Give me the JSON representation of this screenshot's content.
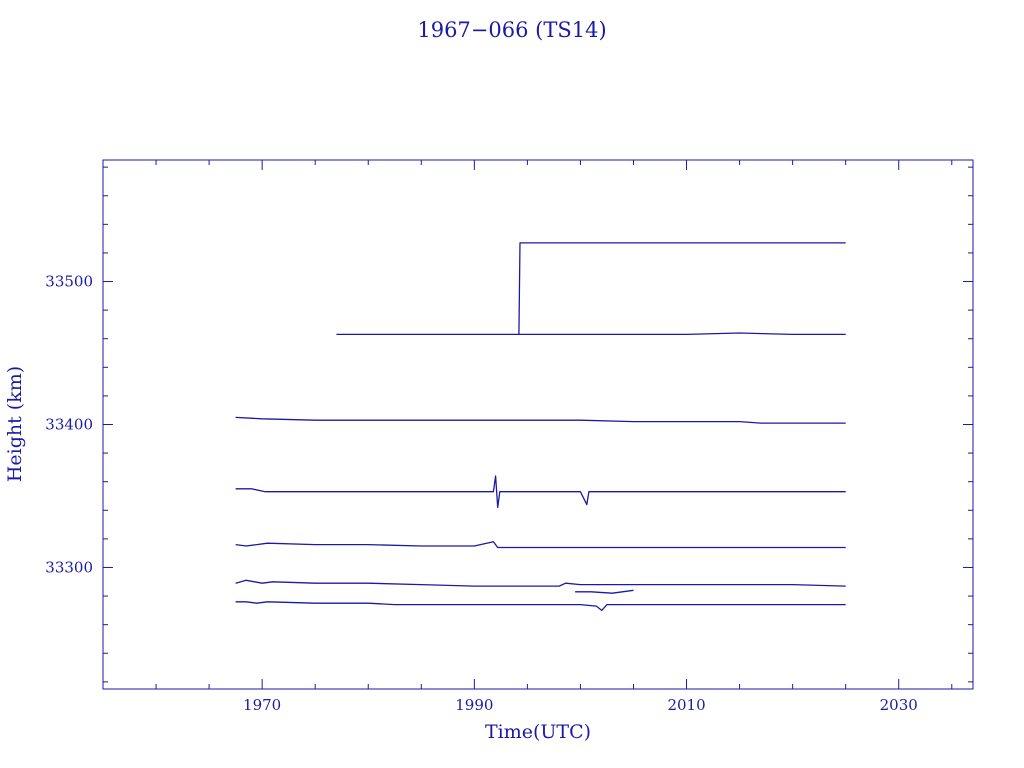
{
  "chart_data": {
    "type": "line",
    "title": "1967−066 (TS14)",
    "xlabel": "Time(UTC)",
    "ylabel": "Height (km)",
    "xlim": [
      1955,
      2037
    ],
    "ylim": [
      33215,
      33585
    ],
    "x_major_ticks": [
      1970,
      1990,
      2010,
      2030
    ],
    "x_tick_labels": [
      "1970",
      "1990",
      "2010",
      "2030"
    ],
    "x_minor_step": 5,
    "y_major_ticks": [
      33300,
      33400,
      33500
    ],
    "y_tick_labels": [
      "33300",
      "33400",
      "33500"
    ],
    "y_minor_step": 20,
    "grid": false,
    "line_color": "#1a1aa6",
    "series": [
      {
        "x": [
          1977.0,
          1980,
          1985,
          1990,
          1994.2,
          2000,
          2005,
          2010,
          2015,
          2020,
          2025.0
        ],
        "y": [
          33463,
          33463,
          33463,
          33463,
          33463,
          33463,
          33463,
          33463,
          33464,
          33463,
          33463
        ]
      },
      {
        "x": [
          1994.2,
          1994.3,
          2000,
          2005,
          2010,
          2015,
          2020,
          2025.0
        ],
        "y": [
          33463,
          33527,
          33527,
          33527,
          33527,
          33527,
          33527,
          33527
        ]
      },
      {
        "x": [
          1967.5,
          1970,
          1975,
          1980,
          1985,
          1990,
          1995,
          2000,
          2005,
          2010,
          2015,
          2017,
          2020,
          2025.0
        ],
        "y": [
          33405,
          33404,
          33403,
          33403,
          33403,
          33403,
          33403,
          33403,
          33402,
          33402,
          33402,
          33401,
          33401,
          33401
        ]
      },
      {
        "x": [
          1967.5,
          1969,
          1970.3,
          1975,
          1980,
          1985,
          1991.8,
          1992.0,
          1992.2,
          1992.4,
          1995,
          2000,
          2000.6,
          2000.8,
          2005,
          2010,
          2015,
          2020,
          2025.0
        ],
        "y": [
          33355,
          33355,
          33353,
          33353,
          33353,
          33353,
          33353,
          33364,
          33342,
          33353,
          33353,
          33353,
          33344,
          33353,
          33353,
          33353,
          33353,
          33353,
          33353
        ]
      },
      {
        "x": [
          1967.5,
          1968.5,
          1969.5,
          1970.5,
          1975,
          1980,
          1985,
          1990,
          1991.8,
          1992.2,
          1995,
          2000,
          2005,
          2010,
          2015,
          2020,
          2025.0
        ],
        "y": [
          33316,
          33315,
          33316,
          33317,
          33316,
          33316,
          33315,
          33315,
          33318,
          33314,
          33314,
          33314,
          33314,
          33314,
          33314,
          33314,
          33314
        ]
      },
      {
        "x": [
          1967.5,
          1968.5,
          1970,
          1971,
          1975,
          1980,
          1985,
          1990,
          1995,
          1998,
          1998.6,
          2000,
          2005,
          2010,
          2015,
          2020,
          2025.0
        ],
        "y": [
          33289,
          33291,
          33289,
          33290,
          33289,
          33289,
          33288,
          33287,
          33287,
          33287,
          33289,
          33288,
          33288,
          33288,
          33288,
          33288,
          33287
        ]
      },
      {
        "x": [
          1999.5,
          2001,
          2003,
          2005.0
        ],
        "y": [
          33283,
          33283,
          33282,
          33284
        ]
      },
      {
        "x": [
          1967.5,
          1968.5,
          1969.5,
          1970.5,
          1975,
          1980,
          1982.5,
          1985,
          1990,
          1995,
          2000,
          2001.5,
          2002,
          2002.5,
          2005,
          2010,
          2015,
          2020,
          2025.0
        ],
        "y": [
          33276,
          33276,
          33275,
          33276,
          33275,
          33275,
          33274,
          33274,
          33274,
          33274,
          33274,
          33273,
          33270,
          33274,
          33274,
          33274,
          33274,
          33274,
          33274
        ]
      }
    ]
  }
}
